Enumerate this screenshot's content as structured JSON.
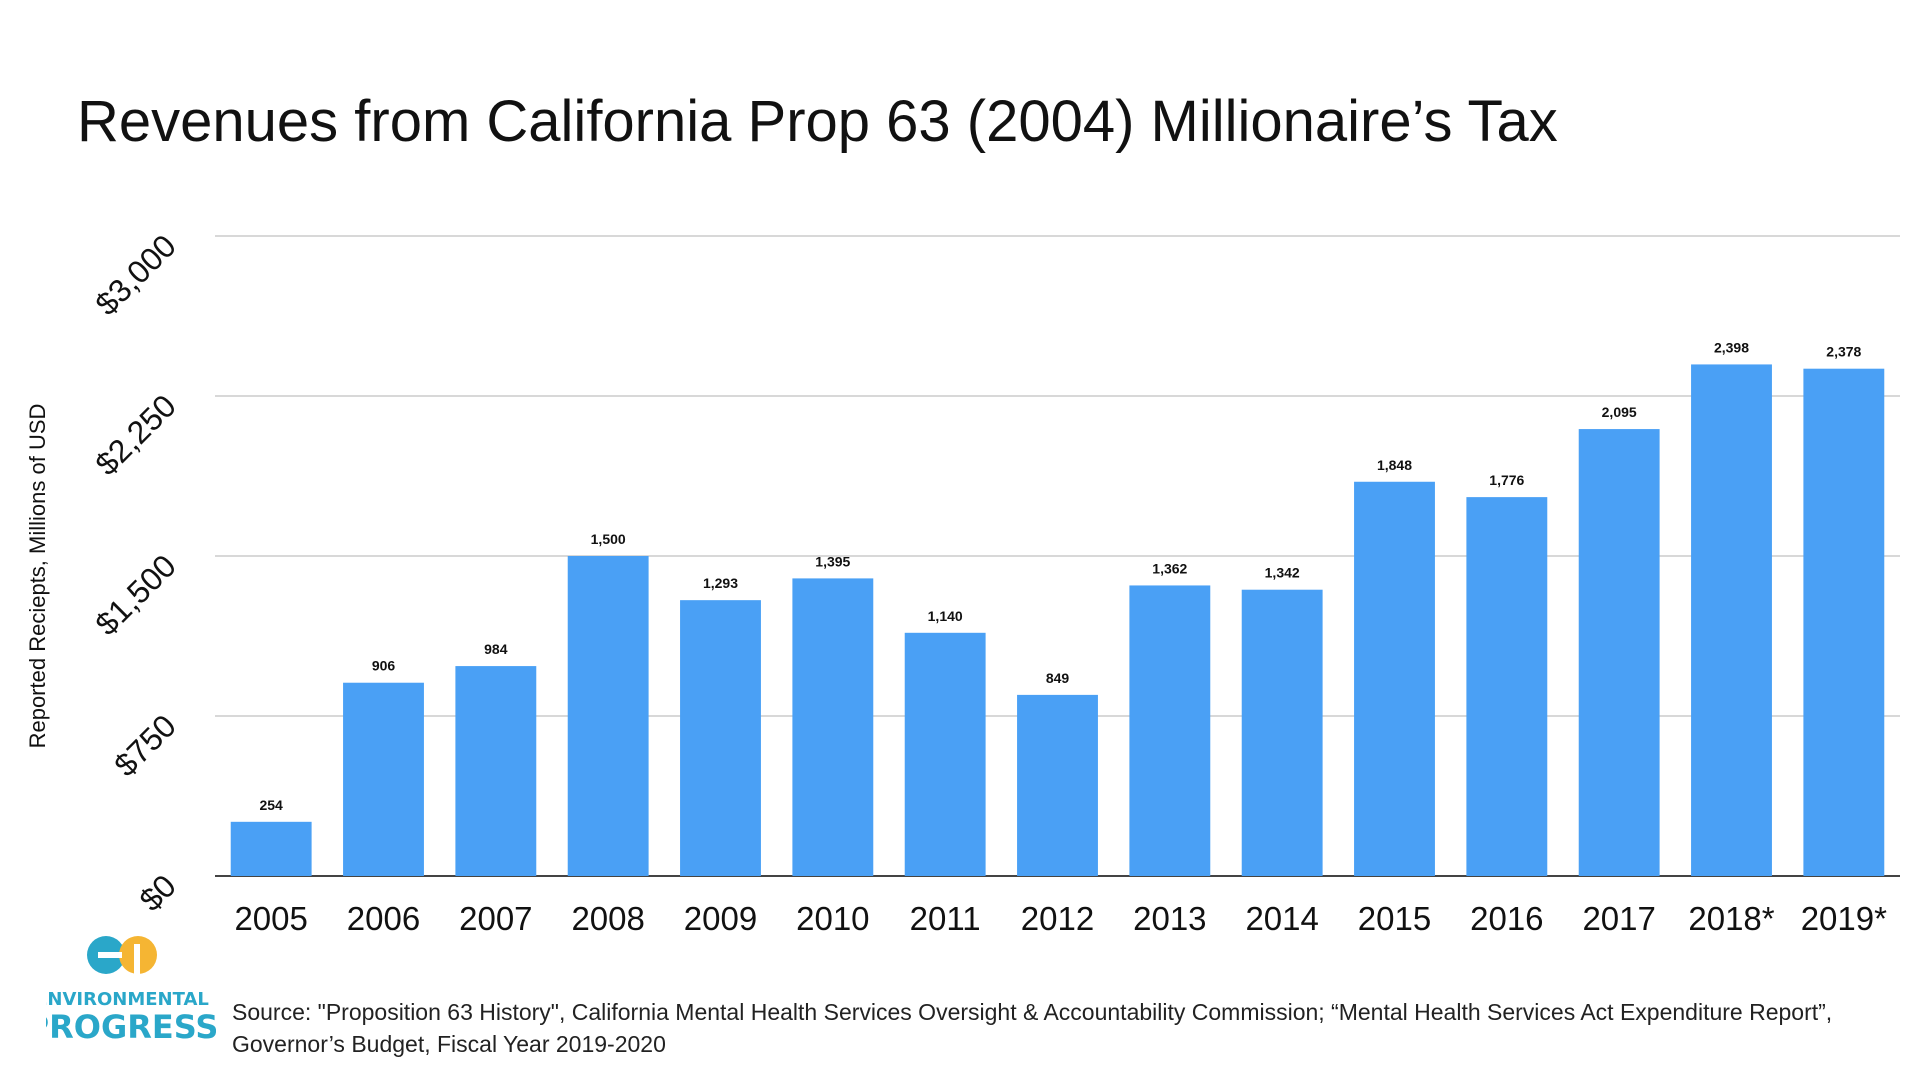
{
  "title": "Revenues from California Prop 63 (2004) Millionaire’s Tax",
  "source": "Source: \"Proposition 63 History\", California Mental Health Services Oversight & Accountability Commission; “Mental Health Services Act Expenditure Report”, Governor’s Budget, Fiscal Year 2019-2020",
  "logo": {
    "line1": "ENVIRONMENTAL",
    "line2": "PROGRESS",
    "color": "#2aa7c9",
    "accent": "#f5b533"
  },
  "colors": {
    "bar": "#4aa0f5",
    "grid": "#cccccc",
    "axis": "#444444"
  },
  "chart_data": {
    "type": "bar",
    "title": "Revenues from California Prop 63 (2004) Millionaire’s Tax",
    "xlabel": "",
    "ylabel": "Reported Reciepts, Millions of USD",
    "ylim": [
      0,
      3000
    ],
    "yticks": [
      0,
      750,
      1500,
      2250,
      3000
    ],
    "ytick_labels": [
      "$0",
      "$750",
      "$1,500",
      "$2,250",
      "$3,000"
    ],
    "grid": true,
    "categories": [
      "2005",
      "2006",
      "2007",
      "2008",
      "2009",
      "2010",
      "2011",
      "2012",
      "2013",
      "2014",
      "2015",
      "2016",
      "2017",
      "2018*",
      "2019*"
    ],
    "values": [
      254,
      906,
      984,
      1500,
      1293,
      1395,
      1140,
      849,
      1362,
      1342,
      1848,
      1776,
      2095,
      2398,
      2378
    ],
    "value_labels": [
      "254",
      "906",
      "984",
      "1,500",
      "1,293",
      "1,395",
      "1,140",
      "849",
      "1,362",
      "1,342",
      "1,848",
      "1,776",
      "2,095",
      "2,398",
      "2,378"
    ]
  }
}
